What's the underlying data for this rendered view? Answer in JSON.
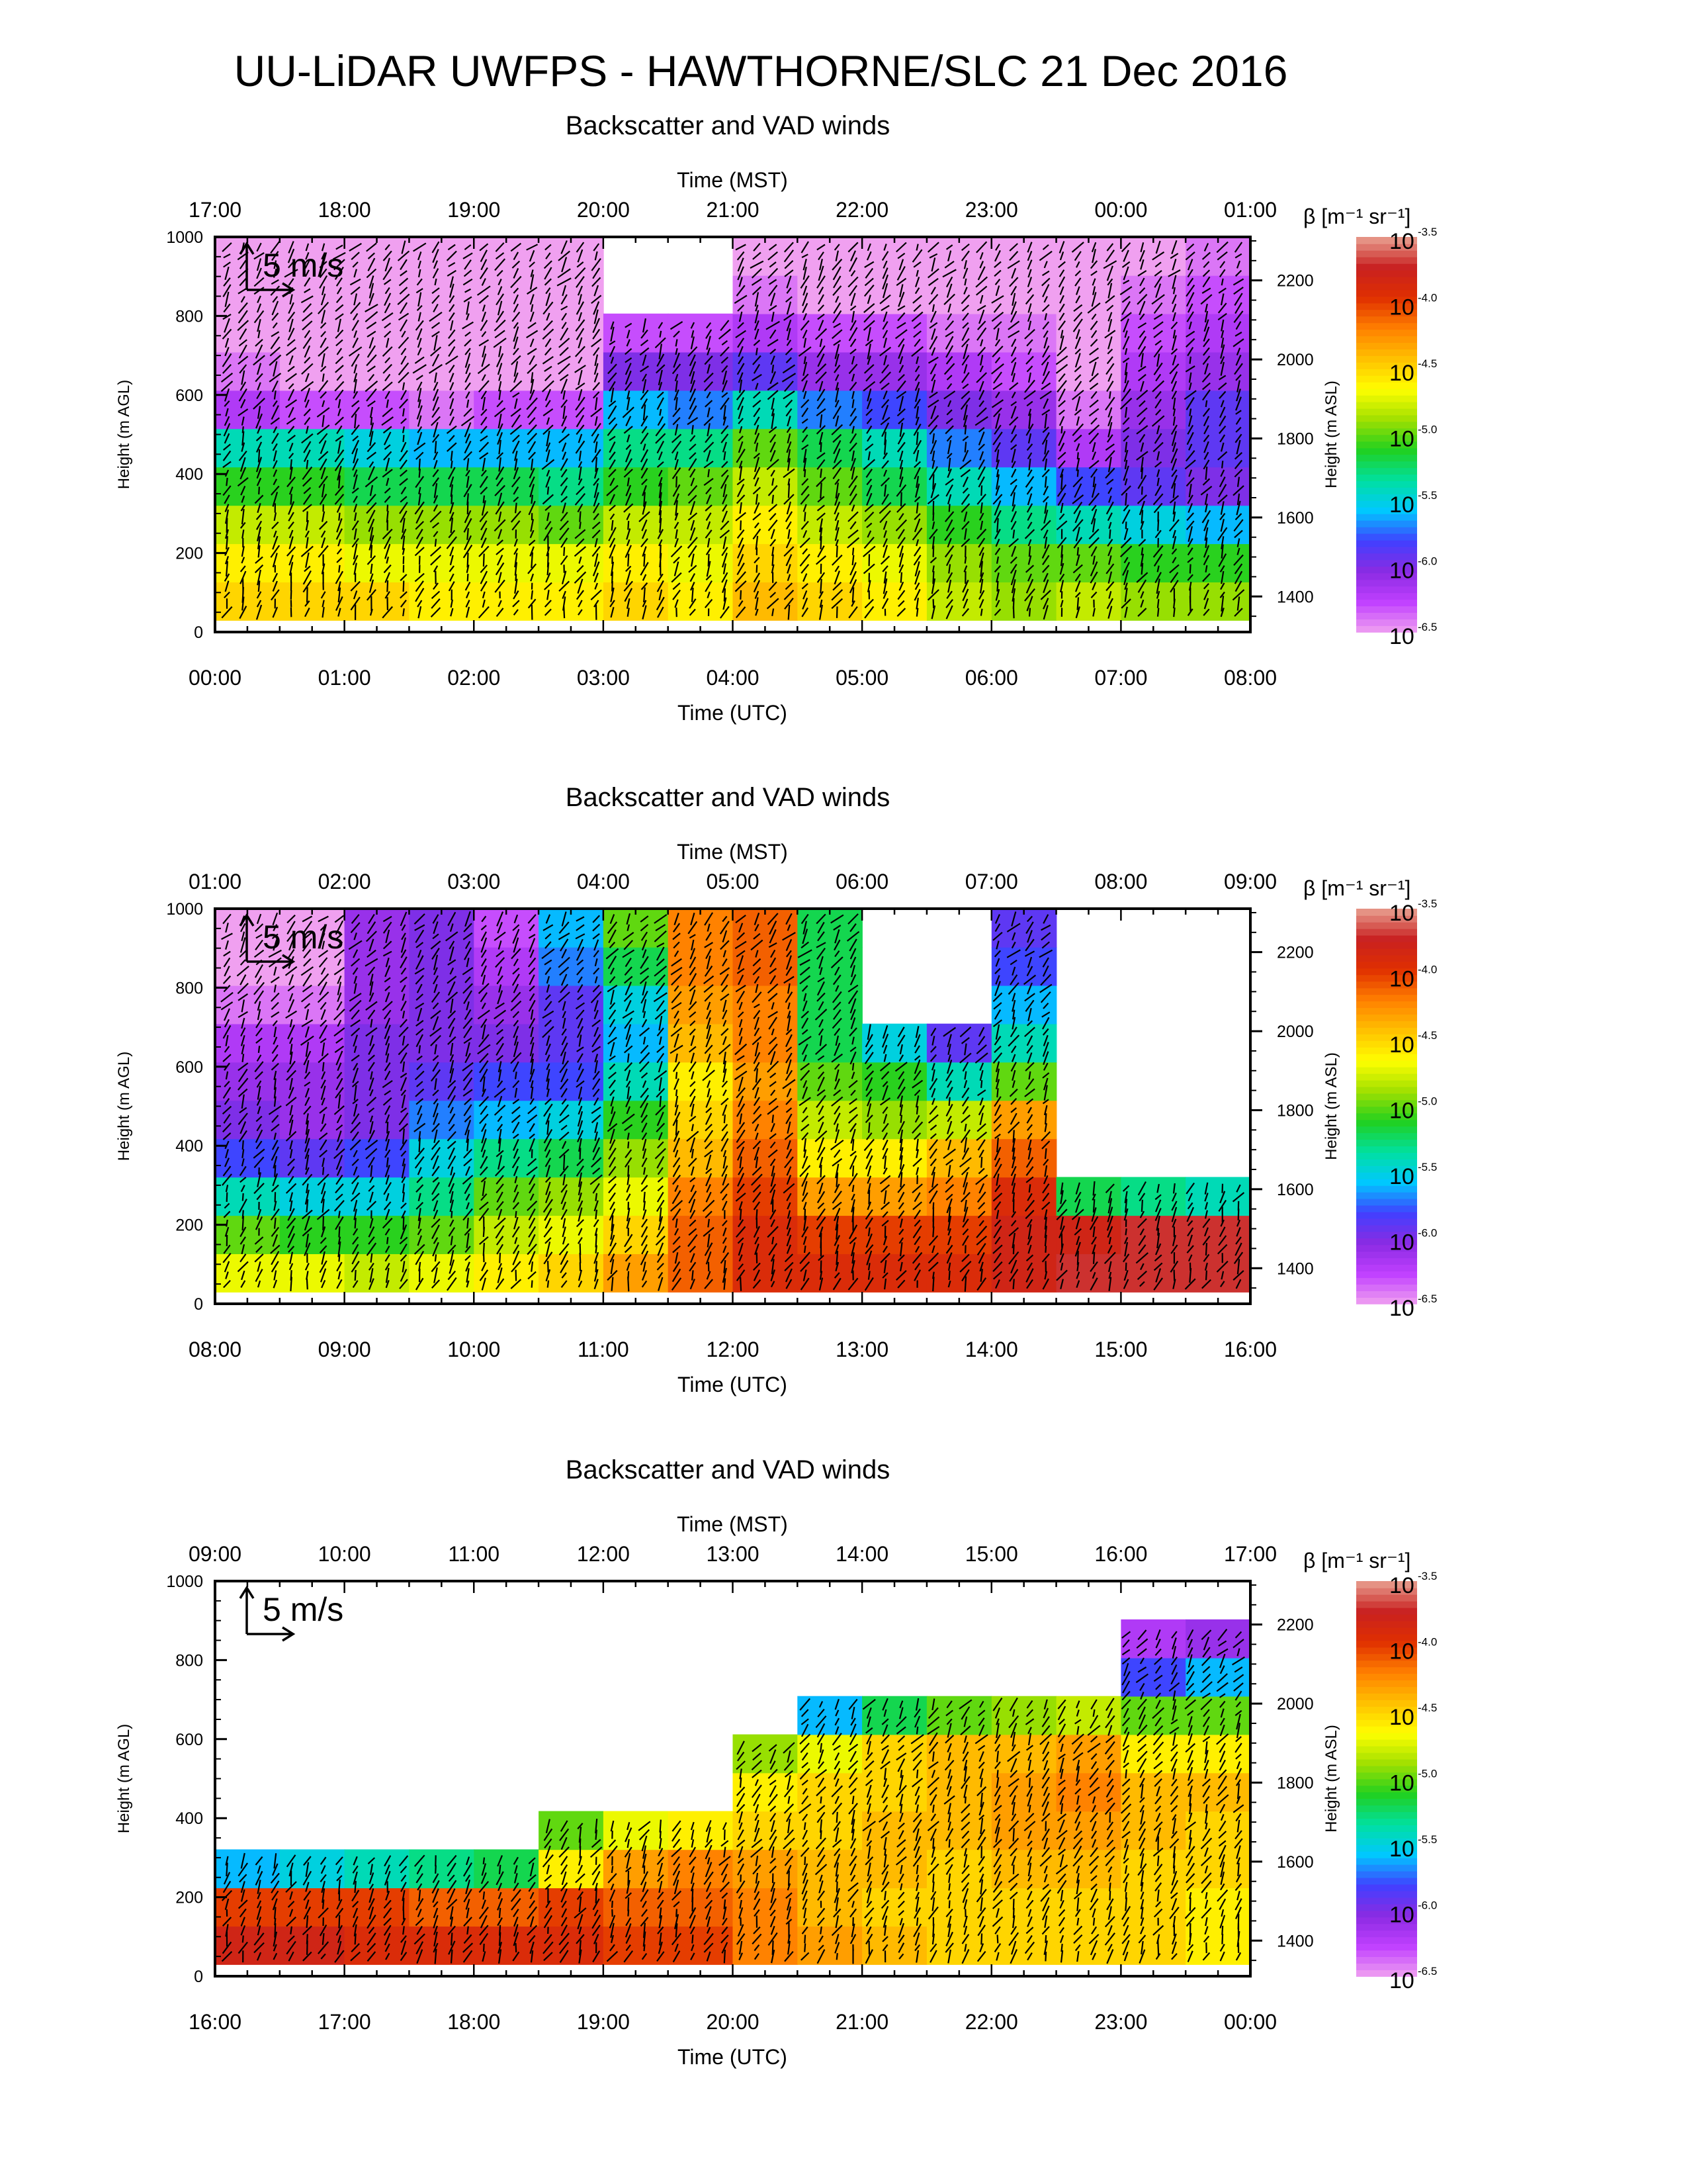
{
  "page": {
    "title": "UU-LiDAR UWFPS - HAWTHORNE/SLC 21 Dec 2016"
  },
  "colors": {
    "white": "#ffffff",
    "black": "#000000",
    "colorbar_stops": [
      "#f0a0f0",
      "#c040ff",
      "#8a2be2",
      "#4040ff",
      "#00c8ff",
      "#00e0a0",
      "#20d020",
      "#a0e000",
      "#ffff00",
      "#ffc000",
      "#ff8000",
      "#e03000",
      "#c82020",
      "#e8a090"
    ]
  },
  "chart_data": [
    {
      "type": "heatmap",
      "title": "Backscatter and VAD winds",
      "x_top_label": "Time (MST)",
      "x_top_ticks": [
        "17:00",
        "18:00",
        "19:00",
        "20:00",
        "21:00",
        "22:00",
        "23:00",
        "00:00",
        "01:00"
      ],
      "x_bottom_label": "Time (UTC)",
      "x_bottom_ticks": [
        "00:00",
        "01:00",
        "02:00",
        "03:00",
        "04:00",
        "05:00",
        "06:00",
        "07:00",
        "08:00"
      ],
      "y_label": "Height (m AGL)",
      "y_ticks": [
        "0",
        "200",
        "400",
        "600",
        "800",
        "1000"
      ],
      "ylim": [
        0,
        1000
      ],
      "y2_label": "Height (m ASL)",
      "y2_ticks": [
        "1400",
        "1600",
        "1800",
        "2000",
        "2200"
      ],
      "y2lim": [
        1310,
        2310
      ],
      "scale_arrow_label": "5 m/s",
      "colorbar_label": "β [m⁻¹ sr⁻¹]",
      "colorbar_ticks": [
        "-3.5",
        "-4.0",
        "-4.5",
        "-5.0",
        "-5.5",
        "-6.0",
        "-6.5"
      ],
      "colorbar_base": "10",
      "log_beta_columns": [
        [
          -4.5,
          -4.6,
          -4.8,
          -5.1,
          -5.4,
          -6.2,
          -6.4,
          -6.5,
          -6.5,
          -6.5
        ],
        [
          -4.5,
          -4.6,
          -4.8,
          -5.1,
          -5.4,
          -6.3,
          -6.5,
          -6.5,
          -6.5,
          -6.5
        ],
        [
          -4.5,
          -4.7,
          -4.9,
          -5.2,
          -5.5,
          -6.3,
          -6.5,
          -6.5,
          -6.5,
          -6.5
        ],
        [
          -4.6,
          -4.7,
          -4.9,
          -5.2,
          -5.6,
          -6.4,
          -6.5,
          -6.5,
          -6.5,
          -6.5
        ],
        [
          -4.6,
          -4.7,
          -4.9,
          -5.2,
          -5.6,
          -6.3,
          -6.5,
          -6.5,
          -6.5,
          -6.5
        ],
        [
          -4.6,
          -4.7,
          -5.0,
          -5.3,
          -5.6,
          -6.3,
          -6.5,
          -6.5,
          -6.5,
          -6.5
        ],
        [
          -4.5,
          -4.6,
          -4.8,
          -5.1,
          -5.3,
          -5.6,
          -6.0,
          -6.3,
          -6.4,
          -6.5
        ],
        [
          -4.6,
          -4.7,
          -4.8,
          -5.0,
          -5.3,
          -5.7,
          -6.0,
          -6.3,
          -6.5,
          -6.5
        ],
        [
          -4.4,
          -4.5,
          -4.6,
          -4.8,
          -5.0,
          -5.4,
          -5.9,
          -6.2,
          -6.4,
          -6.5
        ],
        [
          -4.5,
          -4.6,
          -4.8,
          -5.0,
          -5.2,
          -5.7,
          -6.1,
          -6.3,
          -6.5,
          -6.5
        ],
        [
          -4.6,
          -4.7,
          -4.9,
          -5.2,
          -5.4,
          -5.8,
          -6.1,
          -6.3,
          -6.5,
          -6.5
        ],
        [
          -4.8,
          -4.9,
          -5.1,
          -5.4,
          -5.7,
          -6.0,
          -6.2,
          -6.4,
          -6.5,
          -6.5
        ],
        [
          -4.9,
          -5.0,
          -5.3,
          -5.6,
          -5.9,
          -6.1,
          -6.3,
          -6.4,
          -6.5,
          -6.5
        ],
        [
          -4.8,
          -5.0,
          -5.4,
          -5.8,
          -6.2,
          -6.4,
          -6.5,
          -6.5,
          -6.5,
          -6.5
        ],
        [
          -4.9,
          -5.1,
          -5.5,
          -5.9,
          -6.0,
          -6.1,
          -6.2,
          -6.3,
          -6.4,
          -6.5
        ],
        [
          -4.9,
          -5.1,
          -5.6,
          -6.0,
          -5.9,
          -5.9,
          -6.1,
          -6.2,
          -6.3,
          -6.4
        ]
      ],
      "blank_top_columns": [
        0,
        0,
        0,
        0,
        0,
        0,
        2,
        2,
        0,
        0,
        0,
        0,
        0,
        0,
        0,
        0
      ]
    },
    {
      "type": "heatmap",
      "title": "Backscatter and VAD winds",
      "x_top_label": "Time (MST)",
      "x_top_ticks": [
        "01:00",
        "02:00",
        "03:00",
        "04:00",
        "05:00",
        "06:00",
        "07:00",
        "08:00",
        "09:00"
      ],
      "x_bottom_label": "Time (UTC)",
      "x_bottom_ticks": [
        "08:00",
        "09:00",
        "10:00",
        "11:00",
        "12:00",
        "13:00",
        "14:00",
        "15:00",
        "16:00"
      ],
      "y_label": "Height (m AGL)",
      "y_ticks": [
        "0",
        "200",
        "400",
        "600",
        "800",
        "1000"
      ],
      "ylim": [
        0,
        1000
      ],
      "y2_label": "Height (m ASL)",
      "y2_ticks": [
        "1400",
        "1600",
        "1800",
        "2000",
        "2200"
      ],
      "y2lim": [
        1310,
        2310
      ],
      "scale_arrow_label": "5 m/s",
      "colorbar_label": "β [m⁻¹ sr⁻¹]",
      "colorbar_ticks": [
        "-3.5",
        "-4.0",
        "-4.5",
        "-5.0",
        "-5.5",
        "-6.0",
        "-6.5"
      ],
      "colorbar_base": "10",
      "log_beta_columns": [
        [
          -4.7,
          -5.0,
          -5.4,
          -5.8,
          -6.0,
          -6.1,
          -6.2,
          -6.4,
          -6.5,
          -6.5
        ],
        [
          -4.7,
          -5.1,
          -5.5,
          -5.9,
          -6.1,
          -6.1,
          -6.2,
          -6.4,
          -6.5,
          -6.5
        ],
        [
          -4.8,
          -5.1,
          -5.5,
          -5.8,
          -6.0,
          -6.0,
          -6.0,
          -6.1,
          -6.1,
          -6.1
        ],
        [
          -4.7,
          -5.0,
          -5.3,
          -5.5,
          -5.7,
          -5.9,
          -6.0,
          -6.0,
          -6.0,
          -6.0
        ],
        [
          -4.6,
          -4.8,
          -5.0,
          -5.3,
          -5.6,
          -5.8,
          -6.0,
          -6.1,
          -6.2,
          -6.3
        ],
        [
          -4.5,
          -4.7,
          -4.9,
          -5.2,
          -5.5,
          -5.8,
          -5.9,
          -5.9,
          -5.7,
          -5.6
        ],
        [
          -4.3,
          -4.5,
          -4.7,
          -4.9,
          -5.1,
          -5.4,
          -5.6,
          -5.5,
          -5.2,
          -5.0
        ],
        [
          -4.1,
          -4.1,
          -4.2,
          -4.4,
          -4.5,
          -4.6,
          -4.4,
          -4.3,
          -4.2,
          -4.2
        ],
        [
          -3.9,
          -3.9,
          -4.0,
          -4.1,
          -4.2,
          -4.3,
          -4.2,
          -4.2,
          -4.1,
          -4.1
        ],
        [
          -3.9,
          -4.0,
          -4.3,
          -4.6,
          -4.8,
          -5.0,
          -5.2,
          -5.2,
          -5.2,
          -5.2
        ],
        [
          -3.9,
          -4.0,
          -4.3,
          -4.6,
          -4.9,
          -5.1,
          -5.5,
          -6.0,
          -6.3,
          -6.4
        ],
        [
          -3.9,
          -4.0,
          -4.2,
          -4.4,
          -4.8,
          -5.4,
          -5.9,
          -6.1,
          -6.0,
          -6.0
        ],
        [
          -3.8,
          -3.8,
          -3.9,
          -4.1,
          -4.3,
          -5.0,
          -5.4,
          -5.6,
          -5.8,
          -5.9
        ],
        [
          -3.7,
          -3.8,
          -5.2,
          -5.9,
          -6.5,
          -6.5,
          -6.5,
          -6.5,
          -6.5,
          -6.5
        ],
        [
          -3.7,
          -3.7,
          -5.3,
          -6.5,
          -6.5,
          -6.5,
          -6.5,
          -6.5,
          -6.5,
          -6.5
        ],
        [
          -3.7,
          -3.7,
          -5.4,
          -6.5,
          -6.5,
          -6.5,
          -6.5,
          -6.5,
          -6.5,
          -6.5
        ]
      ],
      "blank_top_columns": [
        0,
        0,
        0,
        0,
        0,
        0,
        0,
        0,
        0,
        0,
        3,
        3,
        0,
        7,
        7,
        7
      ]
    },
    {
      "type": "heatmap",
      "title": "Backscatter and VAD winds",
      "x_top_label": "Time (MST)",
      "x_top_ticks": [
        "09:00",
        "10:00",
        "11:00",
        "12:00",
        "13:00",
        "14:00",
        "15:00",
        "16:00",
        "17:00"
      ],
      "x_bottom_label": "Time (UTC)",
      "x_bottom_ticks": [
        "16:00",
        "17:00",
        "18:00",
        "19:00",
        "20:00",
        "21:00",
        "22:00",
        "23:00",
        "00:00"
      ],
      "y_label": "Height (m AGL)",
      "y_ticks": [
        "0",
        "200",
        "400",
        "600",
        "800",
        "1000"
      ],
      "ylim": [
        0,
        1000
      ],
      "y2_label": "Height (m ASL)",
      "y2_ticks": [
        "1400",
        "1600",
        "1800",
        "2000",
        "2200"
      ],
      "y2lim": [
        1310,
        2310
      ],
      "scale_arrow_label": "5 m/s",
      "colorbar_label": "β [m⁻¹ sr⁻¹]",
      "colorbar_ticks": [
        "-3.5",
        "-4.0",
        "-4.5",
        "-5.0",
        "-5.5",
        "-6.0",
        "-6.5"
      ],
      "colorbar_base": "10",
      "log_beta_columns": [
        [
          -3.8,
          -4.0,
          -5.6,
          -6.5,
          -6.5,
          -6.5,
          -6.5,
          -6.5,
          -6.5,
          -6.5
        ],
        [
          -3.8,
          -4.0,
          -5.5,
          -6.5,
          -6.5,
          -6.5,
          -6.5,
          -6.5,
          -6.5,
          -6.5
        ],
        [
          -3.9,
          -4.0,
          -5.4,
          -6.5,
          -6.5,
          -6.5,
          -6.5,
          -6.5,
          -6.5,
          -6.5
        ],
        [
          -3.9,
          -4.1,
          -5.3,
          -6.5,
          -6.5,
          -6.5,
          -6.5,
          -6.5,
          -6.5,
          -6.5
        ],
        [
          -3.9,
          -4.1,
          -5.2,
          -6.5,
          -6.5,
          -6.5,
          -6.5,
          -6.5,
          -6.5,
          -6.5
        ],
        [
          -3.9,
          -4.0,
          -4.6,
          -5.0,
          -6.5,
          -6.5,
          -6.5,
          -6.5,
          -6.5,
          -6.5
        ],
        [
          -4.0,
          -4.1,
          -4.3,
          -4.7,
          -6.0,
          -6.5,
          -6.5,
          -6.5,
          -6.5,
          -6.5
        ],
        [
          -4.0,
          -4.1,
          -4.2,
          -4.6,
          -5.4,
          -6.5,
          -6.5,
          -6.5,
          -6.5,
          -6.5
        ],
        [
          -4.2,
          -4.2,
          -4.3,
          -4.5,
          -4.6,
          -4.9,
          -6.2,
          -6.5,
          -6.5,
          -6.5
        ],
        [
          -4.3,
          -4.4,
          -4.4,
          -4.5,
          -4.5,
          -4.7,
          -5.6,
          -6.3,
          -6.5,
          -6.5
        ],
        [
          -4.4,
          -4.5,
          -4.4,
          -4.4,
          -4.5,
          -4.5,
          -5.2,
          -6.1,
          -6.5,
          -6.5
        ],
        [
          -4.5,
          -4.5,
          -4.5,
          -4.4,
          -4.4,
          -4.4,
          -5.0,
          -6.0,
          -6.5,
          -6.5
        ],
        [
          -4.5,
          -4.5,
          -4.4,
          -4.3,
          -4.3,
          -4.4,
          -4.9,
          -6.1,
          -6.5,
          -6.5
        ],
        [
          -4.5,
          -4.5,
          -4.4,
          -4.3,
          -4.2,
          -4.3,
          -4.8,
          -6.1,
          -6.5,
          -6.5
        ],
        [
          -4.5,
          -4.5,
          -4.5,
          -4.4,
          -4.4,
          -4.6,
          -5.0,
          -5.8,
          -6.2,
          -6.3
        ],
        [
          -4.6,
          -4.6,
          -4.5,
          -4.5,
          -4.4,
          -4.6,
          -5.0,
          -5.6,
          -6.1,
          -6.3
        ]
      ],
      "blank_top_columns": [
        7,
        7,
        7,
        7,
        7,
        6,
        6,
        6,
        4,
        3,
        3,
        3,
        3,
        3,
        1,
        1
      ]
    }
  ]
}
